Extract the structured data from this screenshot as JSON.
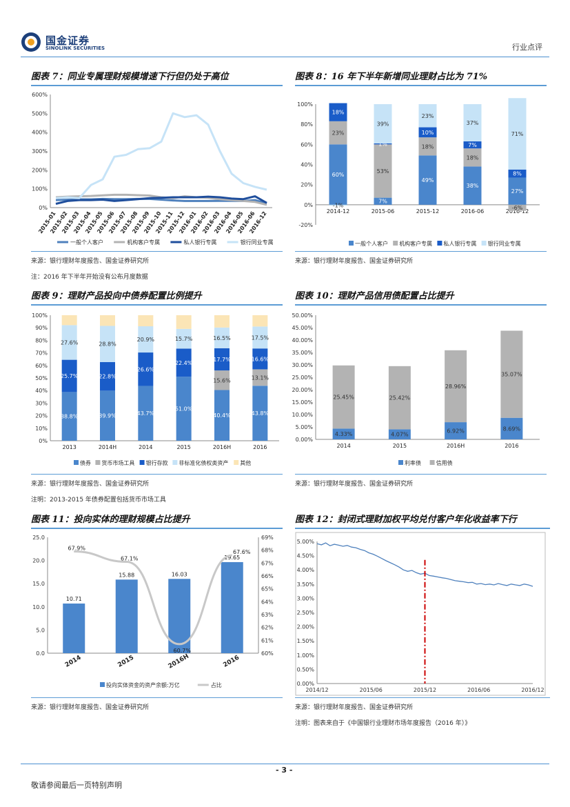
{
  "header": {
    "logo_cn": "国金证券",
    "logo_en": "SINOLINK SECURITIES",
    "section": "行业点评"
  },
  "fig7": {
    "title": "图表 7：同业专属理财规模增速下行但仍处于高位",
    "source": "来源：银行理财年度报告、国金证券研究所",
    "note": "注：2016 年下半年开始没有公布月度数据"
  },
  "fig8": {
    "title": "图表 8：16 年下半年新增同业理财占比为 71%",
    "source": "来源：银行理财年度报告、国金证券研究所"
  },
  "fig9": {
    "title": "图表 9：理财产品投向中债券配置比例提升",
    "source": "来源：银行理财年度报告、国金证券研究所",
    "note": "注明：2013-2015 年债券配置包括货币市场工具"
  },
  "fig10": {
    "title": "图表 10：理财产品信用债配置占比提升",
    "source": "来源：银行理财年度报告、国金证券研究所"
  },
  "fig11": {
    "title": "图表 11：投向实体的理财规模占比提升",
    "source": "来源：银行理财年度报告、国金证券研究所"
  },
  "fig12": {
    "title": "图表 12：封闭式理财加权平均兑付客户年化收益率下行",
    "source": "来源：银行理财年度报告、国金证券研究所",
    "note": "注明：图表来自于《中国银行业理财市场年度报告（2016 年）》"
  },
  "footer": {
    "page": "- 3 -",
    "note": "敬请参阅最后一页特别声明"
  },
  "chart_data": [
    {
      "id": "fig7",
      "type": "line",
      "categories": [
        "2015-01",
        "2015-02",
        "2015-03",
        "2015-04",
        "2015-05",
        "2015-06",
        "2015-07",
        "2015-08",
        "2015-09",
        "2015-10",
        "2015-11",
        "2015-12",
        "2016-01",
        "2016-02",
        "2016-03",
        "2016-04",
        "2016-05",
        "2016-06",
        "2016-12"
      ],
      "y_tick_labels": [
        "0%",
        "100%",
        "200%",
        "300%",
        "400%",
        "500%",
        "600%"
      ],
      "ylim": [
        0,
        600
      ],
      "series": [
        {
          "name": "一般个人客户",
          "color": "#4f81bd",
          "values": [
            40,
            42,
            44,
            44,
            46,
            45,
            45,
            46,
            46,
            42,
            38,
            35,
            35,
            35,
            36,
            36,
            35,
            40,
            22
          ]
        },
        {
          "name": "机构客户专属",
          "color": "#b3b3b3",
          "values": [
            55,
            58,
            60,
            62,
            65,
            68,
            68,
            66,
            64,
            55,
            50,
            60,
            55,
            52,
            45,
            40,
            35,
            30,
            15
          ]
        },
        {
          "name": "私人银行专属",
          "color": "#1f4e9c",
          "values": [
            20,
            35,
            40,
            40,
            42,
            35,
            40,
            45,
            50,
            52,
            55,
            55,
            55,
            58,
            55,
            48,
            45,
            60,
            25
          ]
        },
        {
          "name": "银行同业专属",
          "color": "#c6e3f7",
          "values": [
            50,
            55,
            50,
            120,
            150,
            270,
            280,
            310,
            315,
            350,
            500,
            480,
            490,
            440,
            300,
            180,
            130,
            110,
            95
          ]
        }
      ]
    },
    {
      "id": "fig8",
      "type": "bar",
      "stacked": true,
      "categories": [
        "2014-12",
        "2015-06",
        "2015-12",
        "2016-06",
        "2016-12"
      ],
      "y_tick_labels": [
        "-20%",
        "0%",
        "20%",
        "40%",
        "60%",
        "80%",
        "100%"
      ],
      "ylim": [
        -20,
        100
      ],
      "series": [
        {
          "name": "一般个人客户",
          "color": "#4a86cc",
          "values": [
            60,
            7,
            49,
            38,
            27
          ],
          "labels": [
            "60%",
            "7%",
            "49%",
            "38%",
            "27%"
          ]
        },
        {
          "name": "机构客户专属",
          "color": "#b3b3b3",
          "values": [
            23,
            53,
            18,
            18,
            -6
          ],
          "labels": [
            "23%",
            "53%",
            "18%",
            "18%",
            "-6%"
          ]
        },
        {
          "name": "私人银行专属",
          "color": "#1a5cc8",
          "values": [
            18,
            1,
            10,
            7,
            8
          ],
          "labels": [
            "18%",
            "1%",
            "10%",
            "7%",
            "8%"
          ]
        },
        {
          "name": "银行同业专属",
          "color": "#c6e3f7",
          "values": [
            -1,
            39,
            23,
            37,
            71
          ],
          "labels": [
            "-1%",
            "39%",
            "23%",
            "37%",
            "71%"
          ]
        }
      ]
    },
    {
      "id": "fig9",
      "type": "bar",
      "stacked": true,
      "categories": [
        "2013",
        "2014H",
        "2014",
        "2015",
        "2016H",
        "2016"
      ],
      "y_tick_labels": [
        "0%",
        "10%",
        "20%",
        "30%",
        "40%",
        "50%",
        "60%",
        "70%",
        "80%",
        "90%",
        "100%"
      ],
      "ylim": [
        0,
        100
      ],
      "series": [
        {
          "name": "债券",
          "color": "#4a86cc",
          "values": [
            38.8,
            39.9,
            43.7,
            51.0,
            40.4,
            43.8
          ],
          "labels": [
            "38.8%",
            "39.9%",
            "43.7%",
            "51.0%",
            "40.4%",
            "43.8%"
          ]
        },
        {
          "name": "货币市场工具",
          "color": "#b3b3b3",
          "values": [
            0,
            0,
            0,
            0,
            15.6,
            13.1
          ],
          "labels": [
            "",
            "",
            "",
            "",
            "15.6%",
            "13.1%"
          ]
        },
        {
          "name": "银行存款",
          "color": "#1a5cc8",
          "values": [
            25.7,
            22.8,
            26.6,
            22.4,
            17.7,
            16.6
          ],
          "labels": [
            "25.7%",
            "22.8%",
            "26.6%",
            "22.4%",
            "17.7%",
            "16.6%"
          ]
        },
        {
          "name": "非标准化债权类资产",
          "color": "#c6e3f7",
          "values": [
            27.6,
            28.8,
            20.9,
            15.7,
            16.5,
            17.5
          ],
          "labels": [
            "27.6%",
            "28.8%",
            "20.9%",
            "15.7%",
            "16.5%",
            "17.5%"
          ]
        },
        {
          "name": "其他",
          "color": "#fbe5b6",
          "values": [
            7.9,
            8.5,
            8.8,
            10.9,
            9.8,
            9.0
          ],
          "labels": [
            "",
            "",
            "",
            "",
            "",
            ""
          ]
        }
      ]
    },
    {
      "id": "fig10",
      "type": "bar",
      "stacked": true,
      "categories": [
        "2014",
        "2015",
        "2016H",
        "2016"
      ],
      "y_tick_labels": [
        "0.00%",
        "5.00%",
        "10.00%",
        "15.00%",
        "20.00%",
        "25.00%",
        "30.00%",
        "35.00%",
        "40.00%",
        "45.00%",
        "50.00%"
      ],
      "ylim": [
        0,
        50
      ],
      "series": [
        {
          "name": "利率债",
          "color": "#4a86cc",
          "values": [
            4.33,
            4.07,
            6.92,
            8.69
          ],
          "labels": [
            "4.33%",
            "4.07%",
            "6.92%",
            "8.69%"
          ]
        },
        {
          "name": "信用债",
          "color": "#b3b3b3",
          "values": [
            25.45,
            25.42,
            28.96,
            35.07
          ],
          "labels": [
            "25.45%",
            "25.42%",
            "28.96%",
            "35.07%"
          ]
        }
      ]
    },
    {
      "id": "fig11",
      "type": "bar",
      "categories": [
        "2014",
        "2015",
        "2016H",
        "2016"
      ],
      "left_tick_labels": [
        "0.0",
        "5.0",
        "10.0",
        "15.0",
        "20.0",
        "25.0"
      ],
      "right_tick_labels": [
        "60%",
        "61%",
        "62%",
        "63%",
        "64%",
        "65%",
        "66%",
        "67%",
        "68%",
        "69%"
      ],
      "ylim": [
        0,
        25
      ],
      "y2lim": [
        60,
        69
      ],
      "series": [
        {
          "name": "投向实体资金的资产余额:万亿",
          "color": "#4a86cc",
          "values": [
            10.71,
            15.88,
            16.03,
            19.65
          ],
          "labels": [
            "10.71",
            "15.88",
            "16.03",
            "19.65"
          ]
        },
        {
          "name": "占比",
          "color": "#c8c8c8",
          "type": "line",
          "values": [
            67.9,
            67.1,
            60.7,
            67.6
          ],
          "labels": [
            "67.9%",
            "67.1%",
            "60.7%",
            "67.6%"
          ]
        }
      ]
    },
    {
      "id": "fig12",
      "type": "line",
      "x_tick_labels": [
        "2014/12",
        "2015/06",
        "2015/12",
        "2016/06",
        "2016/12"
      ],
      "y_tick_labels": [
        "0.00%",
        "0.50%",
        "1.00%",
        "1.50%",
        "2.00%",
        "2.50%",
        "3.00%",
        "3.50%",
        "4.00%",
        "4.50%",
        "5.00%"
      ],
      "ylim": [
        0,
        5
      ],
      "series": [
        {
          "name": "封闭式理财加权平均兑付客户年化收益率",
          "color": "#4f81bd",
          "x": [
            0,
            2,
            4,
            6,
            8,
            10,
            12,
            14,
            16,
            18,
            20,
            22,
            24,
            26,
            28,
            30,
            32,
            34,
            36,
            38,
            40,
            42,
            44,
            46,
            48,
            50,
            52,
            54,
            56,
            58,
            60,
            62,
            64,
            66,
            68,
            70,
            72,
            74,
            76,
            78,
            80,
            82,
            84,
            86,
            88,
            90,
            92,
            94,
            96,
            98,
            100
          ],
          "values": [
            4.92,
            4.88,
            4.95,
            4.85,
            4.9,
            4.87,
            4.83,
            4.86,
            4.8,
            4.78,
            4.72,
            4.68,
            4.6,
            4.55,
            4.48,
            4.4,
            4.32,
            4.25,
            4.18,
            4.1,
            4.0,
            3.95,
            3.98,
            3.9,
            3.85,
            3.88,
            3.8,
            3.78,
            3.75,
            3.72,
            3.7,
            3.66,
            3.62,
            3.6,
            3.58,
            3.55,
            3.56,
            3.5,
            3.52,
            3.48,
            3.5,
            3.47,
            3.52,
            3.48,
            3.45,
            3.5,
            3.47,
            3.45,
            3.5,
            3.47,
            3.42
          ]
        },
        {
          "name": "marker",
          "color": "#cc0000",
          "type": "vline",
          "x_value": 50
        }
      ]
    }
  ],
  "legends": {
    "fig7": [
      "一般个人客户",
      "机构客户专属",
      "私人银行专属",
      "银行同业专属"
    ],
    "fig8": [
      "一般个人客户",
      "机构客户专属",
      "私人银行专属",
      "银行同业专属"
    ],
    "fig9": [
      "债券",
      "货币市场工具",
      "银行存款",
      "非标准化债权类资产",
      "其他"
    ],
    "fig10": [
      "利率债",
      "信用债"
    ],
    "fig11": [
      "投向实体资金的资产余额:万亿",
      "占比"
    ]
  }
}
